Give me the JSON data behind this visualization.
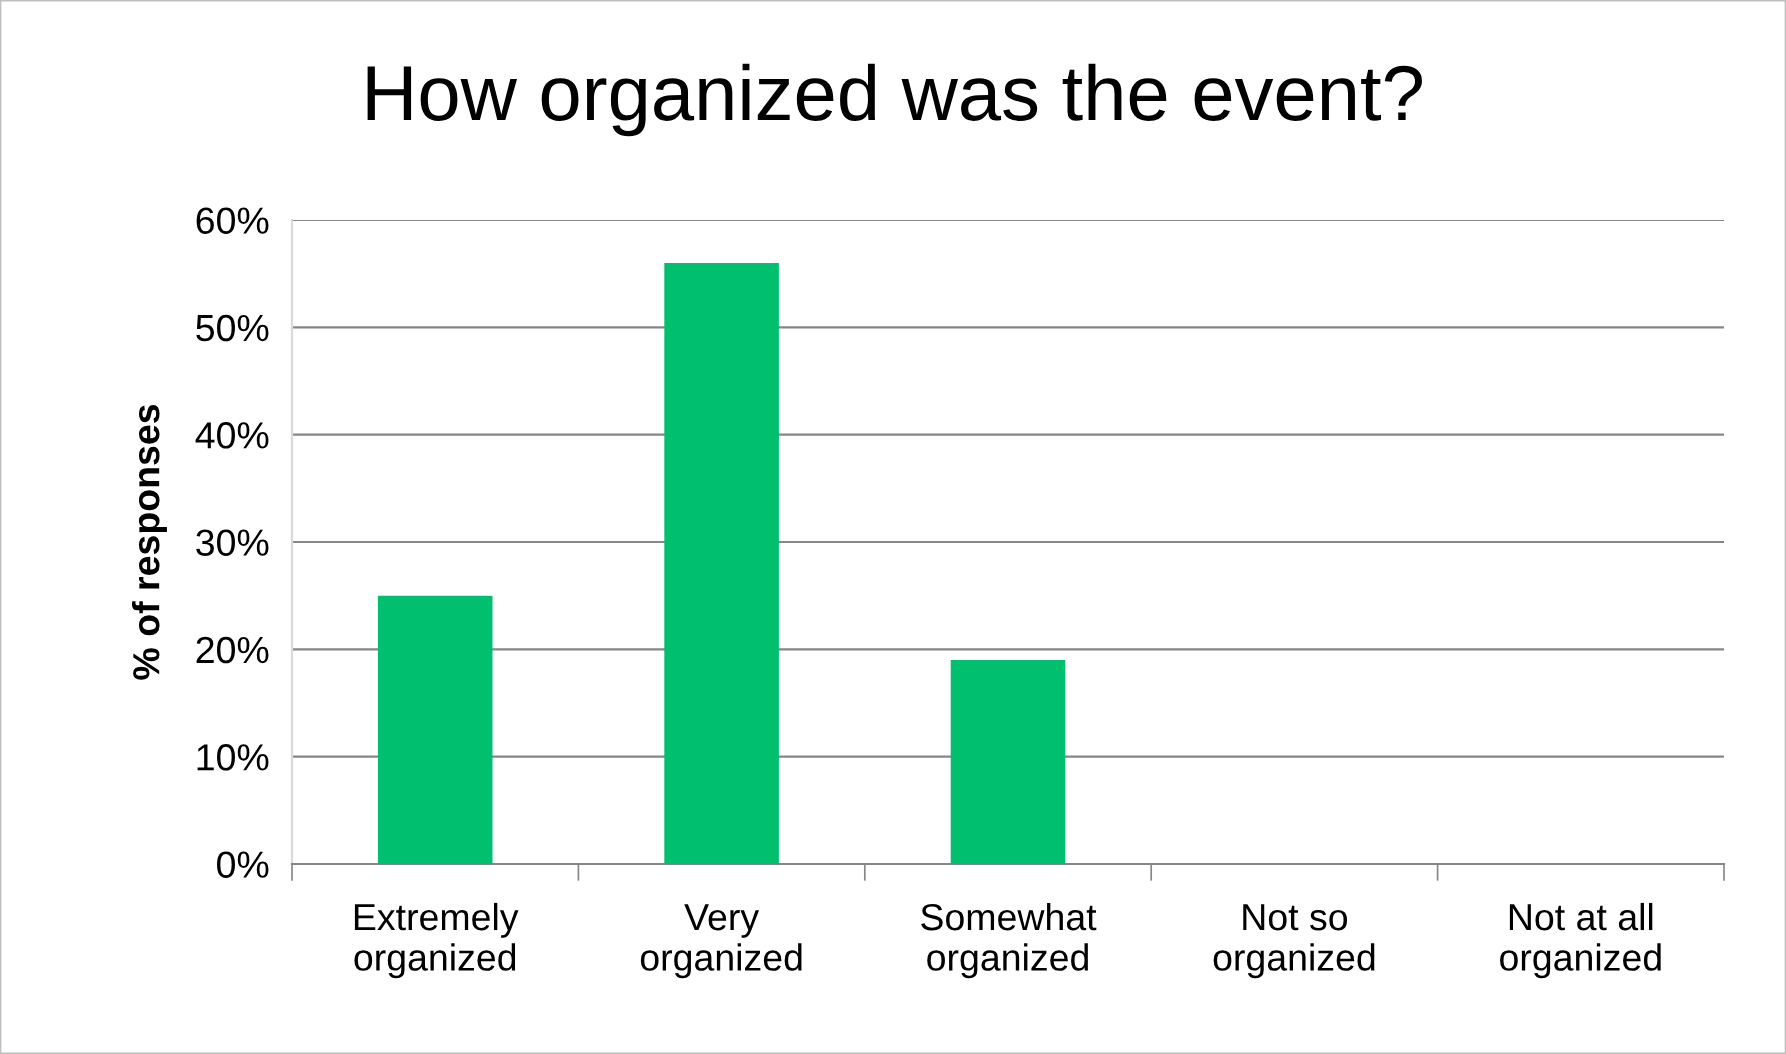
{
  "chart_data": {
    "type": "bar",
    "title": "How organized was the event?",
    "ylabel": "% of responses",
    "categories": [
      "Extremely\norganized",
      "Very\norganized",
      "Somewhat\norganized",
      "Not so\norganized",
      "Not at all\norganized"
    ],
    "values": [
      25,
      56,
      19,
      0,
      0
    ],
    "color": "#00bf6f",
    "ylim": [
      0,
      60
    ],
    "yticks": [
      {
        "value": 0,
        "label": "0%"
      },
      {
        "value": 10,
        "label": "10%"
      },
      {
        "value": 20,
        "label": "20%"
      },
      {
        "value": 30,
        "label": "30%"
      },
      {
        "value": 40,
        "label": "40%"
      },
      {
        "value": 50,
        "label": "50%"
      },
      {
        "value": 60,
        "label": "60%"
      }
    ],
    "grid": "y",
    "legend": false
  }
}
